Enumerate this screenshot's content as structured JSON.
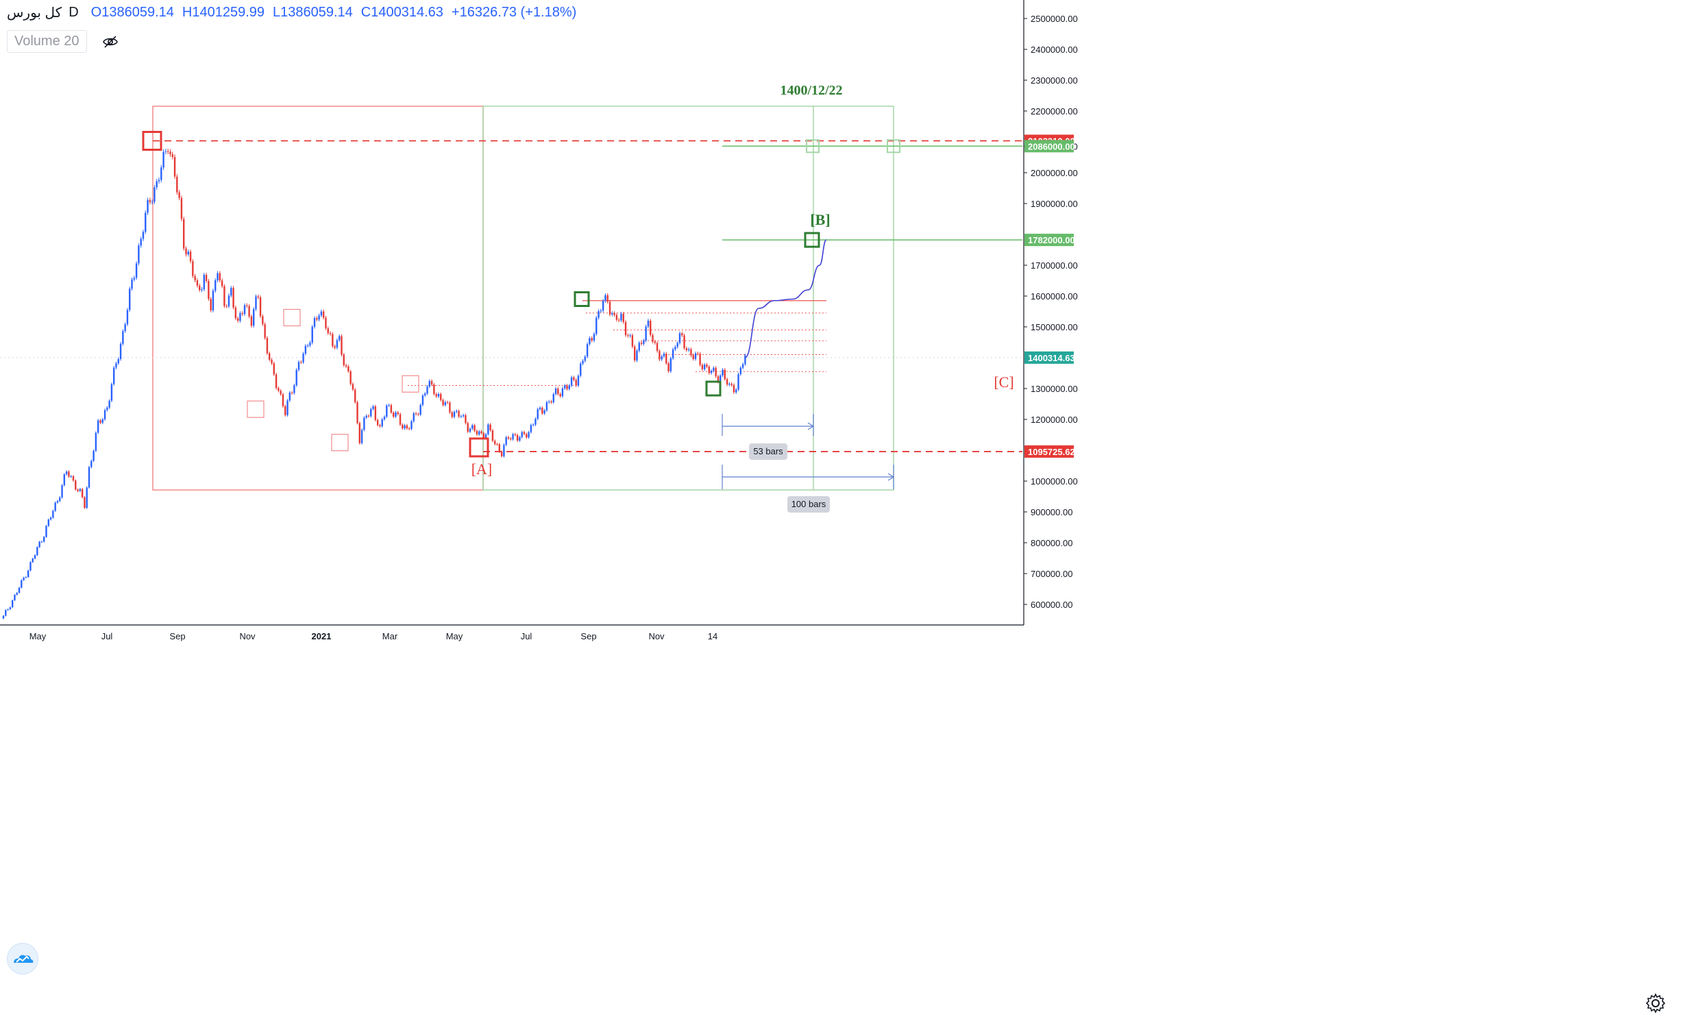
{
  "symbol": "کل بورس",
  "interval": "D",
  "ohlc": {
    "o": "O1386059.14",
    "h": "H1401259.99",
    "l": "L1386059.14",
    "c": "C1400314.63",
    "change": "+16326.73 (+1.18%)"
  },
  "volume_label": "Volume 20",
  "icons": [
    "eye-hidden-icon",
    "tradingview-logo-icon",
    "gear-icon"
  ],
  "colors": {
    "up": "#2962ff",
    "down": "#e53935",
    "red_box": "#f28b8b",
    "green_box": "#a5d6a7",
    "dark_green": "#2e7d32",
    "path": "#3f3fd4",
    "price_tag": "#26a69a"
  },
  "chart_data": {
    "type": "candlestick",
    "title": "",
    "xlabel": "",
    "ylabel": "",
    "ylim": [
      500000,
      2550000
    ],
    "y_ticks": [
      "2500000.00",
      "2400000.00",
      "2300000.00",
      "2200000.00",
      "2086000.00",
      "2000000.00",
      "1900000.00",
      "1700000.00",
      "1600000.00",
      "1500000.00",
      "1300000.00",
      "1200000.00",
      "1000000.00",
      "900000.00",
      "800000.00",
      "700000.00",
      "600000.00"
    ],
    "x_ticks": [
      "May",
      "Jul",
      "Sep",
      "Nov",
      "2021",
      "Mar",
      "May",
      "Jul",
      "Sep",
      "Nov",
      "14"
    ],
    "grid": false,
    "series": [
      {
        "values": [
          [
            0,
            560000
          ],
          [
            6,
            640000
          ],
          [
            12,
            730000
          ],
          [
            18,
            830000
          ],
          [
            24,
            940000
          ],
          [
            28,
            1030000
          ],
          [
            31,
            1000000
          ],
          [
            34,
            960000
          ],
          [
            36,
            920000
          ],
          [
            38,
            1040000
          ],
          [
            42,
            1180000
          ],
          [
            46,
            1240000
          ],
          [
            50,
            1380000
          ],
          [
            53,
            1480000
          ],
          [
            56,
            1600000
          ],
          [
            59,
            1720000
          ],
          [
            62,
            1820000
          ],
          [
            65,
            1920000
          ],
          [
            68,
            1960000
          ],
          [
            71,
            2040000
          ],
          [
            73,
            2103310
          ],
          [
            75,
            2030000
          ],
          [
            78,
            1900000
          ],
          [
            80,
            1780000
          ],
          [
            83,
            1700000
          ],
          [
            86,
            1620000
          ],
          [
            89,
            1660000
          ],
          [
            92,
            1560000
          ],
          [
            95,
            1700000
          ],
          [
            98,
            1560000
          ],
          [
            101,
            1620000
          ],
          [
            104,
            1500000
          ],
          [
            107,
            1580000
          ],
          [
            110,
            1520000
          ],
          [
            113,
            1600000
          ],
          [
            116,
            1460000
          ],
          [
            119,
            1360000
          ],
          [
            122,
            1300000
          ],
          [
            125,
            1220000
          ],
          [
            128,
            1300000
          ],
          [
            131,
            1380000
          ],
          [
            134,
            1420000
          ],
          [
            137,
            1500000
          ],
          [
            140,
            1540000
          ],
          [
            143,
            1520000
          ],
          [
            146,
            1430000
          ],
          [
            149,
            1460000
          ],
          [
            152,
            1360000
          ],
          [
            155,
            1300000
          ],
          [
            158,
            1140000
          ],
          [
            161,
            1210000
          ],
          [
            164,
            1240000
          ],
          [
            167,
            1160000
          ],
          [
            170,
            1250000
          ],
          [
            173,
            1220000
          ],
          [
            176,
            1190000
          ],
          [
            179,
            1170000
          ],
          [
            182,
            1200000
          ],
          [
            185,
            1250000
          ],
          [
            188,
            1310000
          ],
          [
            191,
            1300000
          ],
          [
            194,
            1260000
          ],
          [
            197,
            1240000
          ],
          [
            200,
            1220000
          ],
          [
            203,
            1210000
          ],
          [
            206,
            1180000
          ],
          [
            209,
            1160000
          ],
          [
            212,
            1150000
          ],
          [
            215,
            1170000
          ],
          [
            218,
            1120000
          ],
          [
            221,
            1095725
          ],
          [
            224,
            1140000
          ],
          [
            227,
            1150000
          ],
          [
            230,
            1140000
          ],
          [
            233,
            1160000
          ],
          [
            236,
            1210000
          ],
          [
            239,
            1230000
          ],
          [
            242,
            1260000
          ],
          [
            245,
            1280000
          ],
          [
            248,
            1300000
          ],
          [
            251,
            1310000
          ],
          [
            254,
            1330000
          ],
          [
            257,
            1390000
          ],
          [
            260,
            1450000
          ],
          [
            263,
            1520000
          ],
          [
            266,
            1580000
          ],
          [
            268,
            1590000
          ],
          [
            271,
            1520000
          ],
          [
            274,
            1530000
          ],
          [
            277,
            1480000
          ],
          [
            280,
            1400000
          ],
          [
            283,
            1460000
          ],
          [
            286,
            1500000
          ],
          [
            289,
            1440000
          ],
          [
            292,
            1400000
          ],
          [
            295,
            1370000
          ],
          [
            298,
            1450000
          ],
          [
            301,
            1460000
          ],
          [
            304,
            1420000
          ],
          [
            307,
            1400000
          ],
          [
            310,
            1380000
          ],
          [
            313,
            1360000
          ],
          [
            316,
            1340000
          ],
          [
            319,
            1350000
          ],
          [
            322,
            1300000
          ],
          [
            325,
            1310000
          ],
          [
            328,
            1386059
          ],
          [
            329,
            1400314
          ]
        ]
      }
    ],
    "projection": [
      [
        329,
        1400314
      ],
      [
        335,
        1560000
      ],
      [
        342,
        1585000
      ],
      [
        350,
        1590000
      ],
      [
        357,
        1620000
      ],
      [
        362,
        1700000
      ],
      [
        365,
        1782000
      ]
    ],
    "levels": {
      "top_resistance": 2103310,
      "target_upper": 2086000,
      "target_b": 1782000,
      "current": 1400314.63,
      "low_a": 1095725.62,
      "peak_line": 1585000
    },
    "price_tags": [
      "2103310.00",
      "2086000.00",
      "1782000.00",
      "1400314.63",
      "1095725.62"
    ],
    "annotations": {
      "date_label": "1400/12/22",
      "wave_a": "[A]",
      "wave_b": "[B]",
      "wave_c": "[C]",
      "bars_short": "53 bars",
      "bars_long": "100 bars"
    }
  }
}
